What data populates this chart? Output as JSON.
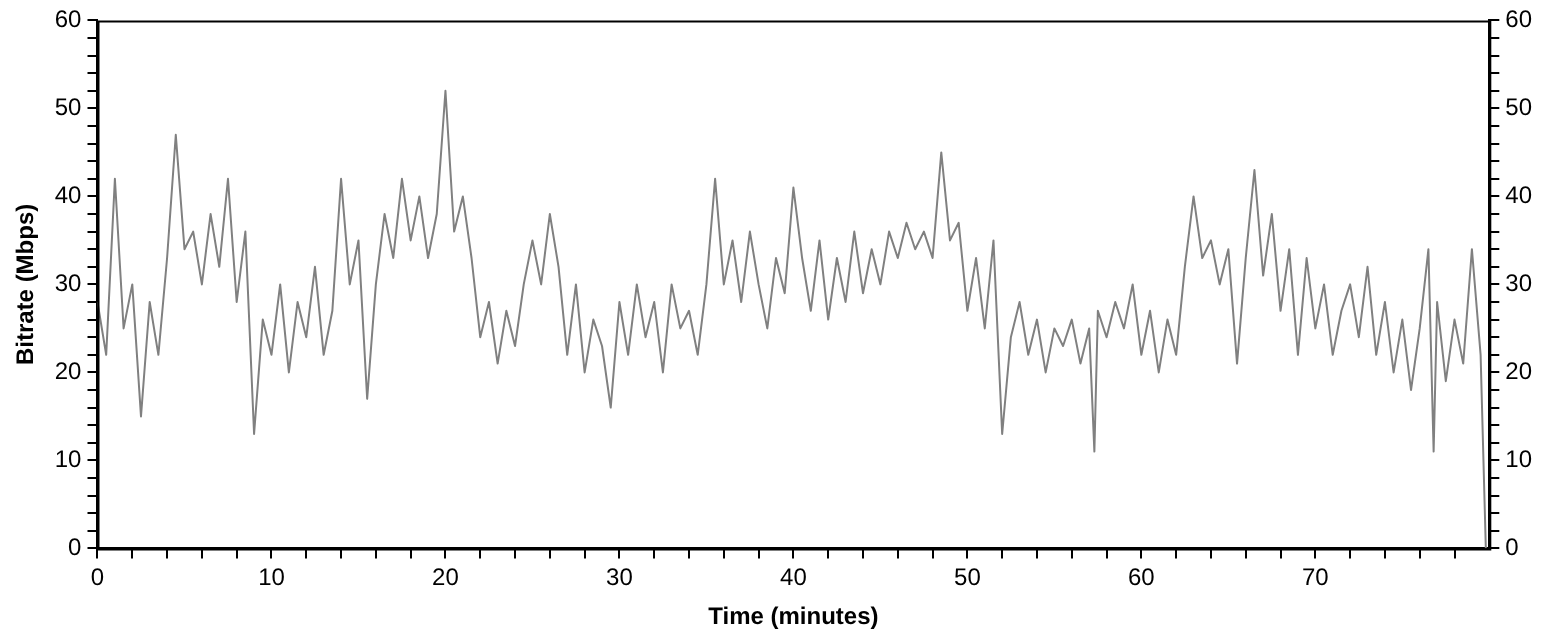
{
  "chart_data": {
    "type": "line",
    "xlabel": "Time (minutes)",
    "ylabel": "Bitrate (Mbps)",
    "xlim": [
      0,
      80
    ],
    "xticks": [
      0,
      {
        "value": 2,
        "label": null
      },
      {
        "value": 4,
        "label": null
      },
      {
        "value": 6,
        "label": null
      },
      {
        "value": 8,
        "label": null
      },
      10,
      {
        "value": 12,
        "label": null
      },
      {
        "value": 14,
        "label": null
      },
      {
        "value": 16,
        "label": null
      },
      {
        "value": 18,
        "label": null
      },
      20,
      {
        "value": 22,
        "label": null
      },
      {
        "value": 24,
        "label": null
      },
      {
        "value": 26,
        "label": null
      },
      {
        "value": 28,
        "label": null
      },
      30,
      {
        "value": 32,
        "label": null
      },
      {
        "value": 34,
        "label": null
      },
      {
        "value": 36,
        "label": null
      },
      {
        "value": 38,
        "label": null
      },
      40,
      {
        "value": 42,
        "label": null
      },
      {
        "value": 44,
        "label": null
      },
      {
        "value": 46,
        "label": null
      },
      {
        "value": 48,
        "label": null
      },
      50,
      {
        "value": 52,
        "label": null
      },
      {
        "value": 54,
        "label": null
      },
      {
        "value": 56,
        "label": null
      },
      {
        "value": 58,
        "label": null
      },
      60,
      {
        "value": 62,
        "label": null
      },
      {
        "value": 64,
        "label": null
      },
      {
        "value": 66,
        "label": null
      },
      {
        "value": 68,
        "label": null
      },
      70,
      {
        "value": 72,
        "label": null
      },
      {
        "value": 74,
        "label": null
      },
      {
        "value": 76,
        "label": null
      },
      {
        "value": 78,
        "label": null
      }
    ],
    "ylim": [
      0,
      60
    ],
    "yticks": [
      0,
      {
        "value": 2,
        "label": null
      },
      {
        "value": 4,
        "label": null
      },
      {
        "value": 6,
        "label": null
      },
      {
        "value": 8,
        "label": null
      },
      10,
      {
        "value": 12,
        "label": null
      },
      {
        "value": 14,
        "label": null
      },
      {
        "value": 16,
        "label": null
      },
      {
        "value": 18,
        "label": null
      },
      20,
      {
        "value": 22,
        "label": null
      },
      {
        "value": 24,
        "label": null
      },
      {
        "value": 26,
        "label": null
      },
      {
        "value": 28,
        "label": null
      },
      30,
      {
        "value": 32,
        "label": null
      },
      {
        "value": 34,
        "label": null
      },
      {
        "value": 36,
        "label": null
      },
      {
        "value": 38,
        "label": null
      },
      40,
      {
        "value": 42,
        "label": null
      },
      {
        "value": 44,
        "label": null
      },
      {
        "value": 46,
        "label": null
      },
      {
        "value": 48,
        "label": null
      },
      50,
      {
        "value": 52,
        "label": null
      },
      {
        "value": 54,
        "label": null
      },
      {
        "value": 56,
        "label": null
      },
      {
        "value": 58,
        "label": null
      },
      60
    ],
    "y2lim": [
      0,
      60
    ],
    "y2ticks": [
      0,
      {
        "value": 2,
        "label": null
      },
      {
        "value": 4,
        "label": null
      },
      {
        "value": 6,
        "label": null
      },
      {
        "value": 8,
        "label": null
      },
      10,
      {
        "value": 12,
        "label": null
      },
      {
        "value": 14,
        "label": null
      },
      {
        "value": 16,
        "label": null
      },
      {
        "value": 18,
        "label": null
      },
      20,
      {
        "value": 22,
        "label": null
      },
      {
        "value": 24,
        "label": null
      },
      {
        "value": 26,
        "label": null
      },
      {
        "value": 28,
        "label": null
      },
      30,
      {
        "value": 32,
        "label": null
      },
      {
        "value": 34,
        "label": null
      },
      {
        "value": 36,
        "label": null
      },
      {
        "value": 38,
        "label": null
      },
      40,
      {
        "value": 42,
        "label": null
      },
      {
        "value": 44,
        "label": null
      },
      {
        "value": 46,
        "label": null
      },
      {
        "value": 48,
        "label": null
      },
      50,
      {
        "value": 52,
        "label": null
      },
      {
        "value": 54,
        "label": null
      },
      {
        "value": 56,
        "label": null
      },
      {
        "value": 58,
        "label": null
      },
      60
    ],
    "grid": false,
    "legend": false,
    "marker": "none",
    "line_style": "solid",
    "series": [
      {
        "color": "#808080",
        "x": [
          0,
          0.5,
          1,
          1.5,
          2,
          2.5,
          3,
          3.5,
          4,
          4.5,
          5,
          5.5,
          6,
          6.5,
          7,
          7.5,
          8,
          8.5,
          9,
          9.5,
          10,
          10.5,
          11,
          11.5,
          12,
          12.5,
          13,
          13.5,
          14,
          14.5,
          15,
          15.5,
          16,
          16.5,
          17,
          17.5,
          18,
          18.5,
          19,
          19.5,
          20,
          20.5,
          21,
          21.5,
          22,
          22.5,
          23,
          23.5,
          24,
          24.5,
          25,
          25.5,
          26,
          26.5,
          27,
          27.5,
          28,
          28.5,
          29,
          29.5,
          30,
          30.5,
          31,
          31.5,
          32,
          32.5,
          33,
          33.5,
          34,
          34.5,
          35,
          35.5,
          36,
          36.5,
          37,
          37.5,
          38,
          38.5,
          39,
          39.5,
          40,
          40.5,
          41,
          41.5,
          42,
          42.5,
          43,
          43.5,
          44,
          44.5,
          45,
          45.5,
          46,
          46.5,
          47,
          47.5,
          48,
          48.5,
          49,
          49.5,
          50,
          50.5,
          51,
          51.5,
          52,
          52.5,
          53,
          53.5,
          54,
          54.5,
          55,
          55.5,
          56,
          56.5,
          57,
          57.3,
          57.5,
          58,
          58.5,
          59,
          59.5,
          60,
          60.5,
          61,
          61.5,
          62,
          62.5,
          63,
          63.5,
          64,
          64.5,
          65,
          65.5,
          66,
          66.5,
          67,
          67.5,
          68,
          68.5,
          69,
          69.5,
          70,
          70.5,
          71,
          71.5,
          72,
          72.5,
          73,
          73.5,
          74,
          74.5,
          75,
          75.5,
          76,
          76.5,
          76.8,
          77,
          77.5,
          78,
          78.5,
          79,
          79.5,
          79.8
        ],
        "values": [
          28,
          22,
          42,
          25,
          30,
          15,
          28,
          22,
          33,
          47,
          34,
          36,
          30,
          38,
          32,
          42,
          28,
          36,
          13,
          26,
          22,
          30,
          20,
          28,
          24,
          32,
          22,
          27,
          42,
          30,
          35,
          17,
          30,
          38,
          33,
          42,
          35,
          40,
          33,
          38,
          52,
          36,
          40,
          33,
          24,
          28,
          21,
          27,
          23,
          30,
          35,
          30,
          38,
          32,
          22,
          30,
          20,
          26,
          23,
          16,
          28,
          22,
          30,
          24,
          28,
          20,
          30,
          25,
          27,
          22,
          30,
          42,
          30,
          35,
          28,
          36,
          30,
          25,
          33,
          29,
          41,
          33,
          27,
          35,
          26,
          33,
          28,
          36,
          29,
          34,
          30,
          36,
          33,
          37,
          34,
          36,
          33,
          45,
          35,
          37,
          27,
          33,
          25,
          35,
          13,
          24,
          28,
          22,
          26,
          20,
          25,
          23,
          26,
          21,
          25,
          11,
          27,
          24,
          28,
          25,
          30,
          22,
          27,
          20,
          26,
          22,
          32,
          40,
          33,
          35,
          30,
          34,
          21,
          33,
          43,
          31,
          38,
          27,
          34,
          22,
          33,
          25,
          30,
          22,
          27,
          30,
          24,
          32,
          22,
          28,
          20,
          26,
          18,
          25,
          34,
          11,
          28,
          19,
          26,
          21,
          34,
          22,
          0
        ]
      }
    ]
  }
}
